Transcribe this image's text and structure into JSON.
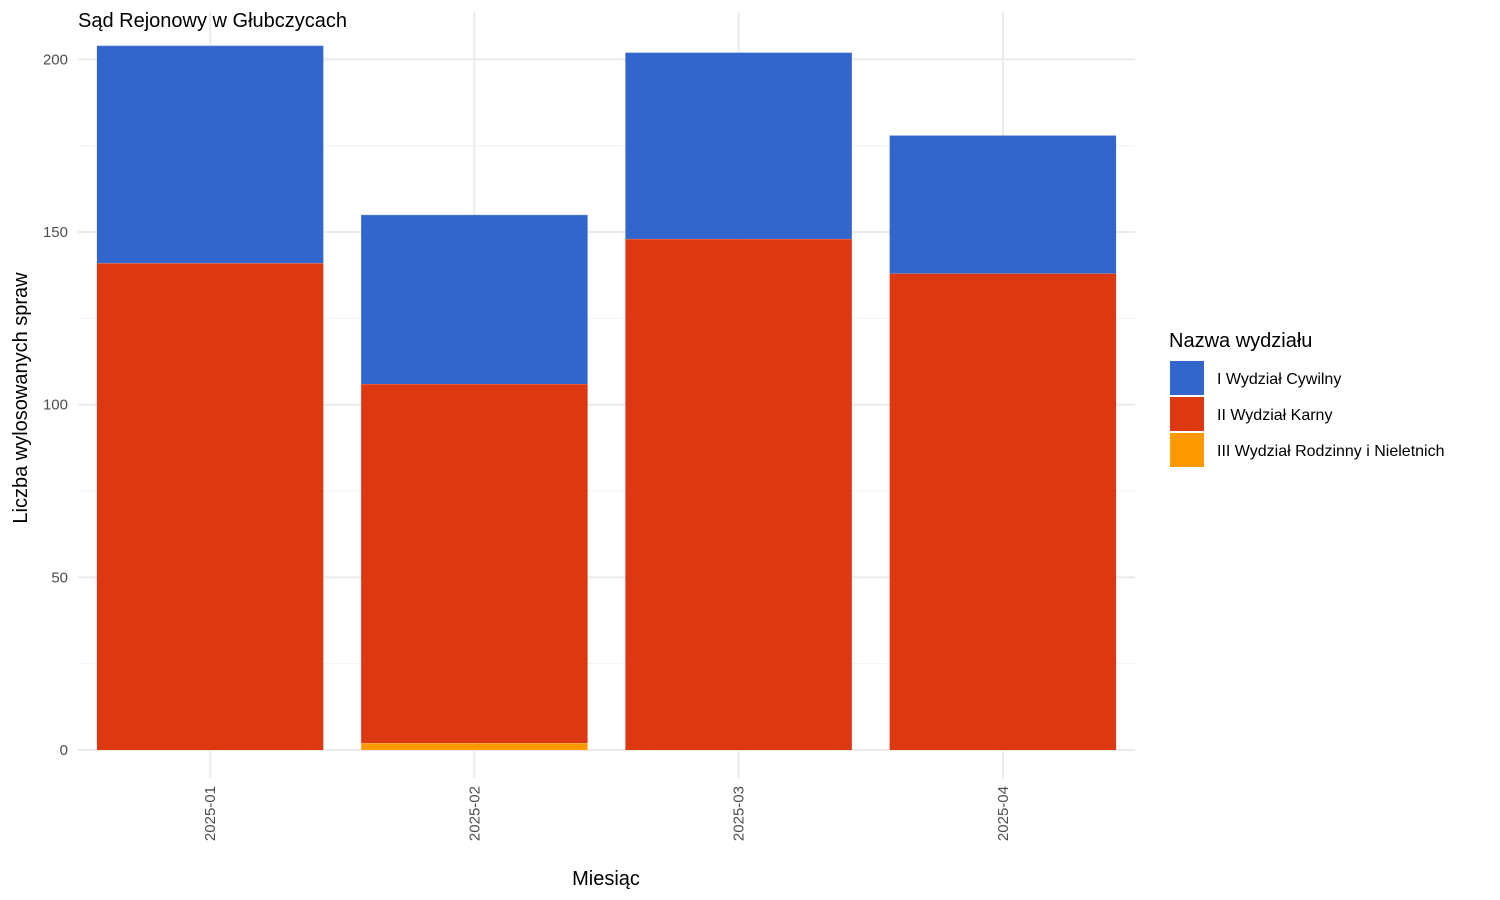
{
  "chart_data": {
    "type": "bar",
    "stacked": true,
    "title": "Sąd Rejonowy w Głubczycach",
    "xlabel": "Miesiąc",
    "ylabel": "Liczba wylosowanych spraw",
    "categories": [
      "2025-01",
      "2025-02",
      "2025-03",
      "2025-04"
    ],
    "ylim": [
      0,
      210
    ],
    "yticks": [
      0,
      50,
      100,
      150,
      200
    ],
    "grid": true,
    "legend": {
      "title": "Nazwa wydziału",
      "position": "right"
    },
    "series": [
      {
        "name": "III Wydział Rodzinny i Nieletnich",
        "color": "#FF9900",
        "values": [
          0,
          2,
          0,
          0
        ]
      },
      {
        "name": "II Wydział Karny",
        "color": "#DC3912",
        "values": [
          141,
          104,
          148,
          138
        ]
      },
      {
        "name": "I Wydział Cywilny",
        "color": "#3366CC",
        "values": [
          63,
          49,
          54,
          40
        ]
      }
    ],
    "legend_order": [
      "I Wydział Cywilny",
      "II Wydział Karny",
      "III Wydział Rodzinny i Nieletnich"
    ]
  }
}
